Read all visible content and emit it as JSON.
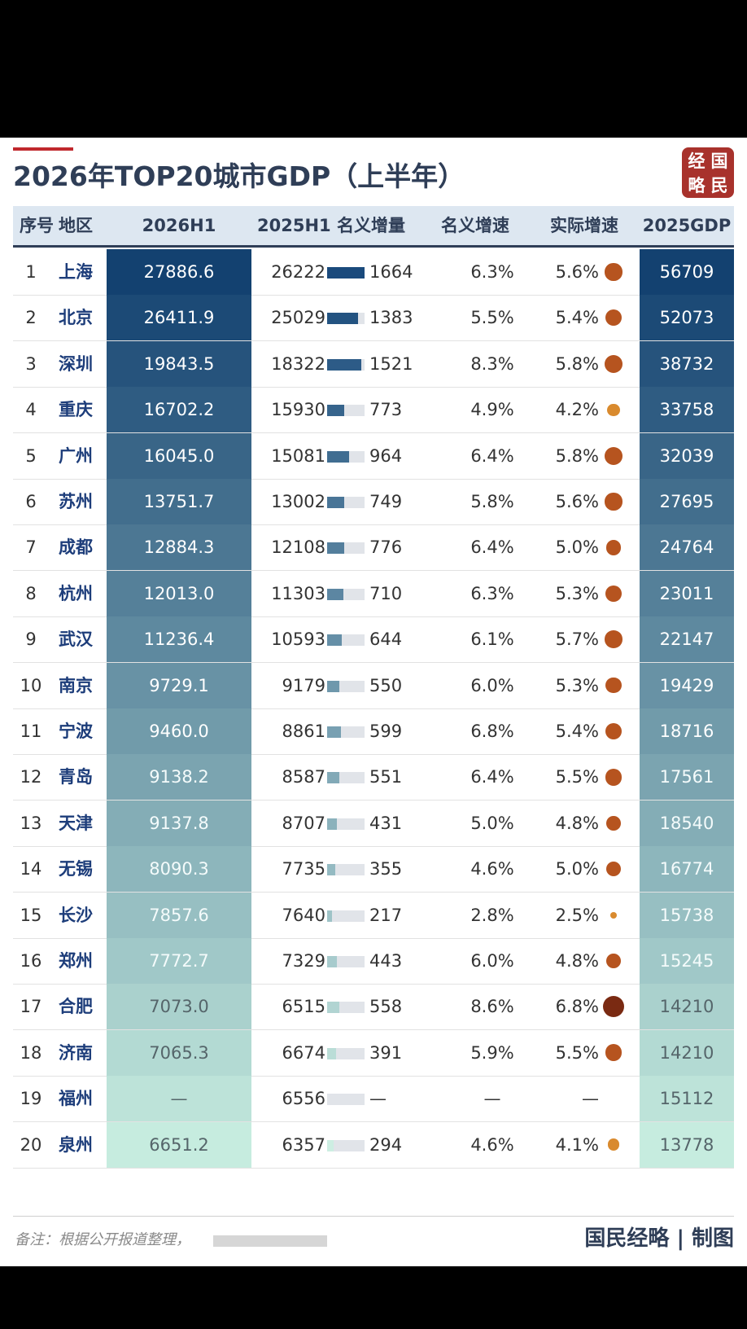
{
  "title": "2026年TOP20城市GDP（上半年）",
  "seal": [
    "经",
    "国",
    "略",
    "民"
  ],
  "columns": {
    "rank": "序号",
    "region": "地区",
    "gdp_2026h1": "2026H1",
    "gdp_2025h1": "2025H1",
    "nominal_increase": "名义增量",
    "nominal_growth": "名义增速",
    "real_growth": "实际增速",
    "gdp_2025": "2025GDP"
  },
  "colors": {
    "gradient_top": "#134170",
    "gradient_bottom": "#c6ecdf",
    "bar_top": "#1a4a7c",
    "bar_bottom": "#cdeee2",
    "dot": "#b6541f"
  },
  "chart_data": {
    "type": "table",
    "rows": [
      {
        "rank": "1",
        "city": "上海",
        "gdp_2026h1": "27886.6",
        "gdp_2025h1": "26222",
        "increase": "1664",
        "nominal": "6.3%",
        "real": "5.6%",
        "gdp_2025": "56709",
        "increase_value": 1664,
        "real_value": 5.6
      },
      {
        "rank": "2",
        "city": "北京",
        "gdp_2026h1": "26411.9",
        "gdp_2025h1": "25029",
        "increase": "1383",
        "nominal": "5.5%",
        "real": "5.4%",
        "gdp_2025": "52073",
        "increase_value": 1383,
        "real_value": 5.4
      },
      {
        "rank": "3",
        "city": "深圳",
        "gdp_2026h1": "19843.5",
        "gdp_2025h1": "18322",
        "increase": "1521",
        "nominal": "8.3%",
        "real": "5.8%",
        "gdp_2025": "38732",
        "increase_value": 1521,
        "real_value": 5.8
      },
      {
        "rank": "4",
        "city": "重庆",
        "gdp_2026h1": "16702.2",
        "gdp_2025h1": "15930",
        "increase": "773",
        "nominal": "4.9%",
        "real": "4.2%",
        "gdp_2025": "33758",
        "increase_value": 773,
        "real_value": 4.2
      },
      {
        "rank": "5",
        "city": "广州",
        "gdp_2026h1": "16045.0",
        "gdp_2025h1": "15081",
        "increase": "964",
        "nominal": "6.4%",
        "real": "5.8%",
        "gdp_2025": "32039",
        "increase_value": 964,
        "real_value": 5.8
      },
      {
        "rank": "6",
        "city": "苏州",
        "gdp_2026h1": "13751.7",
        "gdp_2025h1": "13002",
        "increase": "749",
        "nominal": "5.8%",
        "real": "5.6%",
        "gdp_2025": "27695",
        "increase_value": 749,
        "real_value": 5.6
      },
      {
        "rank": "7",
        "city": "成都",
        "gdp_2026h1": "12884.3",
        "gdp_2025h1": "12108",
        "increase": "776",
        "nominal": "6.4%",
        "real": "5.0%",
        "gdp_2025": "24764",
        "increase_value": 776,
        "real_value": 5.0
      },
      {
        "rank": "8",
        "city": "杭州",
        "gdp_2026h1": "12013.0",
        "gdp_2025h1": "11303",
        "increase": "710",
        "nominal": "6.3%",
        "real": "5.3%",
        "gdp_2025": "23011",
        "increase_value": 710,
        "real_value": 5.3
      },
      {
        "rank": "9",
        "city": "武汉",
        "gdp_2026h1": "11236.4",
        "gdp_2025h1": "10593",
        "increase": "644",
        "nominal": "6.1%",
        "real": "5.7%",
        "gdp_2025": "22147",
        "increase_value": 644,
        "real_value": 5.7
      },
      {
        "rank": "10",
        "city": "南京",
        "gdp_2026h1": "9729.1",
        "gdp_2025h1": "9179",
        "increase": "550",
        "nominal": "6.0%",
        "real": "5.3%",
        "gdp_2025": "19429",
        "increase_value": 550,
        "real_value": 5.3
      },
      {
        "rank": "11",
        "city": "宁波",
        "gdp_2026h1": "9460.0",
        "gdp_2025h1": "8861",
        "increase": "599",
        "nominal": "6.8%",
        "real": "5.4%",
        "gdp_2025": "18716",
        "increase_value": 599,
        "real_value": 5.4
      },
      {
        "rank": "12",
        "city": "青岛",
        "gdp_2026h1": "9138.2",
        "gdp_2025h1": "8587",
        "increase": "551",
        "nominal": "6.4%",
        "real": "5.5%",
        "gdp_2025": "17561",
        "increase_value": 551,
        "real_value": 5.5
      },
      {
        "rank": "13",
        "city": "天津",
        "gdp_2026h1": "9137.8",
        "gdp_2025h1": "8707",
        "increase": "431",
        "nominal": "5.0%",
        "real": "4.8%",
        "gdp_2025": "18540",
        "increase_value": 431,
        "real_value": 4.8
      },
      {
        "rank": "14",
        "city": "无锡",
        "gdp_2026h1": "8090.3",
        "gdp_2025h1": "7735",
        "increase": "355",
        "nominal": "4.6%",
        "real": "5.0%",
        "gdp_2025": "16774",
        "increase_value": 355,
        "real_value": 5.0
      },
      {
        "rank": "15",
        "city": "长沙",
        "gdp_2026h1": "7857.6",
        "gdp_2025h1": "7640",
        "increase": "217",
        "nominal": "2.8%",
        "real": "2.5%",
        "gdp_2025": "15738",
        "increase_value": 217,
        "real_value": 2.5
      },
      {
        "rank": "16",
        "city": "郑州",
        "gdp_2026h1": "7772.7",
        "gdp_2025h1": "7329",
        "increase": "443",
        "nominal": "6.0%",
        "real": "4.8%",
        "gdp_2025": "15245",
        "increase_value": 443,
        "real_value": 4.8
      },
      {
        "rank": "17",
        "city": "合肥",
        "gdp_2026h1": "7073.0",
        "gdp_2025h1": "6515",
        "increase": "558",
        "nominal": "8.6%",
        "real": "6.8%",
        "gdp_2025": "14210",
        "increase_value": 558,
        "real_value": 6.8
      },
      {
        "rank": "18",
        "city": "济南",
        "gdp_2026h1": "7065.3",
        "gdp_2025h1": "6674",
        "increase": "391",
        "nominal": "5.9%",
        "real": "5.5%",
        "gdp_2025": "14210",
        "increase_value": 391,
        "real_value": 5.5
      },
      {
        "rank": "19",
        "city": "福州",
        "gdp_2026h1": "—",
        "gdp_2025h1": "6556",
        "increase": "—",
        "nominal": "—",
        "real": "—",
        "gdp_2025": "15112",
        "increase_value": null,
        "real_value": null
      },
      {
        "rank": "20",
        "city": "泉州",
        "gdp_2026h1": "6651.2",
        "gdp_2025h1": "6357",
        "increase": "294",
        "nominal": "4.6%",
        "real": "4.1%",
        "gdp_2025": "13778",
        "increase_value": 294,
        "real_value": 4.1
      }
    ],
    "increase_max": 1664
  },
  "footer": {
    "note": "备注：根据公开报道整理，",
    "credit": "国民经略 | 制图"
  }
}
